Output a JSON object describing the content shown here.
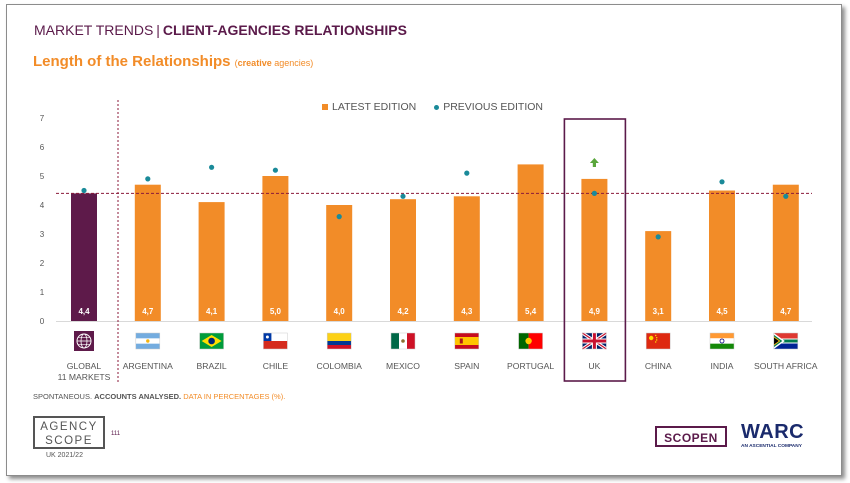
{
  "header": {
    "section": "MARKET TRENDS",
    "separator": "|",
    "title": "CLIENT-AGENCIES RELATIONSHIPS"
  },
  "subtitle": {
    "main": "Length of the Relationships",
    "paren_open": "(",
    "highlight": "creative",
    "rest": " agencies)"
  },
  "legend": {
    "latest": "LATEST EDITION",
    "previous": "PREVIOUS EDITION"
  },
  "chart_data": {
    "type": "bar",
    "categories": [
      "GLOBAL 11 MARKETS",
      "ARGENTINA",
      "BRAZIL",
      "CHILE",
      "COLOMBIA",
      "MEXICO",
      "SPAIN",
      "PORTUGAL",
      "UK",
      "CHINA",
      "INDIA",
      "SOUTH AFRICA"
    ],
    "category_lines": [
      [
        "GLOBAL",
        "11 MARKETS"
      ],
      [
        "ARGENTINA"
      ],
      [
        "BRAZIL"
      ],
      [
        "CHILE"
      ],
      [
        "COLOMBIA"
      ],
      [
        "MEXICO"
      ],
      [
        "SPAIN"
      ],
      [
        "PORTUGAL"
      ],
      [
        "UK"
      ],
      [
        "CHINA"
      ],
      [
        "INDIA"
      ],
      [
        "SOUTH AFRICA"
      ]
    ],
    "series": [
      {
        "name": "LATEST EDITION",
        "values": [
          4.4,
          4.7,
          4.1,
          5.0,
          4.0,
          4.2,
          4.3,
          5.4,
          4.9,
          3.1,
          4.5,
          4.7
        ]
      },
      {
        "name": "PREVIOUS EDITION",
        "values": [
          4.5,
          4.9,
          5.3,
          5.2,
          3.6,
          4.3,
          5.1,
          null,
          4.4,
          2.9,
          4.8,
          4.3
        ]
      }
    ],
    "value_labels": [
      "4,4",
      "4,7",
      "4,1",
      "5,0",
      "4,0",
      "4,2",
      "4,3",
      "5,4",
      "4,9",
      "3,1",
      "4,5",
      "4,7"
    ],
    "y_ticks": [
      0,
      1,
      2,
      3,
      4,
      5,
      6,
      7
    ],
    "ylim": [
      0,
      7
    ],
    "reference_line": 4.4,
    "highlight_category": "UK",
    "up_arrow_category": "UK",
    "flags": [
      "globe-icon",
      "argentina-flag",
      "brazil-flag",
      "chile-flag",
      "colombia-flag",
      "mexico-flag",
      "spain-flag",
      "portugal-flag",
      "uk-flag",
      "china-flag",
      "india-flag",
      "south-africa-flag"
    ],
    "colors": {
      "latest": "#f28c28",
      "global": "#5e1a4a",
      "previous": "#1a8a99",
      "arrow": "#5aa63c",
      "reference": "#8b1a3a",
      "highlight_box": "#5b1a4a"
    },
    "legend_position": "top-center"
  },
  "footnote": {
    "part1": "SPONTANEOUS.",
    "part2": "ACCOUNTS ANALYSED.",
    "part3": "DATA IN PERCENTAGES (%)."
  },
  "branding": {
    "agency_line1": "AGENCY",
    "agency_line2": "SCOPE",
    "page_number": "111",
    "edition": "UK 2021/22",
    "scopen": "SCOPEN",
    "warc": "WARC",
    "warc_sub": "AN ASCENTIAL COMPANY"
  }
}
